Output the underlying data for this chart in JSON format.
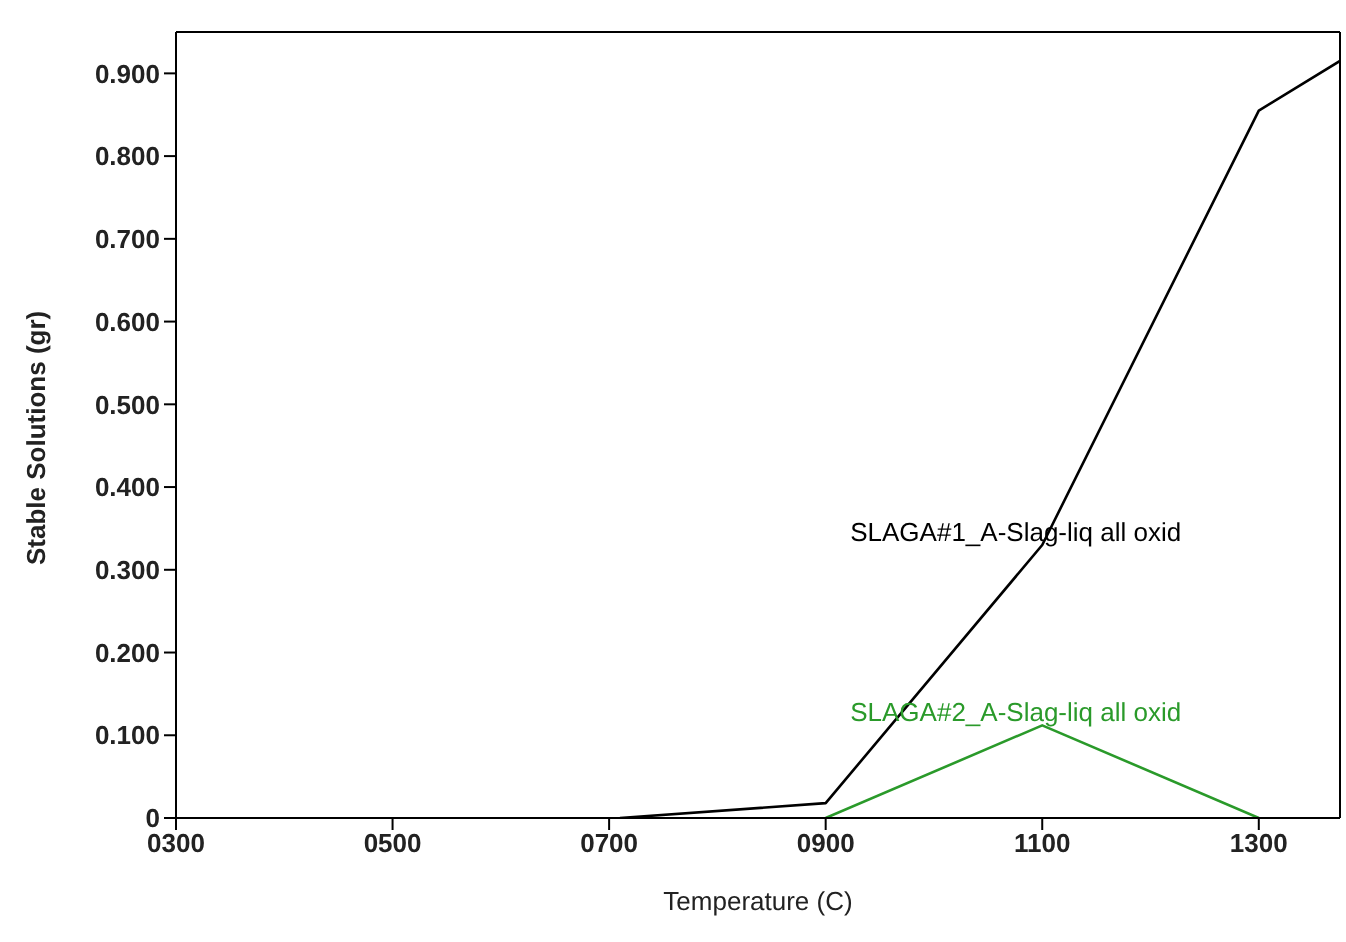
{
  "chart_data": {
    "type": "line",
    "xlabel": "Temperature (C)",
    "ylabel": "Stable Solutions (gr)",
    "xlim": [
      300,
      1375
    ],
    "ylim": [
      0,
      0.95
    ],
    "xticks": [
      {
        "value": 300,
        "label": "0300"
      },
      {
        "value": 500,
        "label": "0500"
      },
      {
        "value": 700,
        "label": "0700"
      },
      {
        "value": 900,
        "label": "0900"
      },
      {
        "value": 1100,
        "label": "1100"
      },
      {
        "value": 1300,
        "label": "1300"
      }
    ],
    "yticks": [
      {
        "value": 0,
        "label": "0"
      },
      {
        "value": 0.1,
        "label": "0.100"
      },
      {
        "value": 0.2,
        "label": "0.200"
      },
      {
        "value": 0.3,
        "label": "0.300"
      },
      {
        "value": 0.4,
        "label": "0.400"
      },
      {
        "value": 0.5,
        "label": "0.500"
      },
      {
        "value": 0.6,
        "label": "0.600"
      },
      {
        "value": 0.7,
        "label": "0.700"
      },
      {
        "value": 0.8,
        "label": "0.800"
      },
      {
        "value": 0.9,
        "label": "0.900"
      }
    ],
    "legend": false,
    "marker": "none",
    "line_style": "solid",
    "series": [
      {
        "name": "SLAGA#1_A-Slag-liq all oxid",
        "color": "#000000",
        "x": [
          710,
          900,
          1100,
          1300,
          1375
        ],
        "values": [
          0,
          0.018,
          0.33,
          0.855,
          0.915
        ]
      },
      {
        "name": "SLAGA#2_A-Slag-liq all oxid",
        "color": "#2a9a2a",
        "x": [
          900,
          1100,
          1300
        ],
        "values": [
          0,
          0.112,
          0
        ]
      }
    ]
  }
}
